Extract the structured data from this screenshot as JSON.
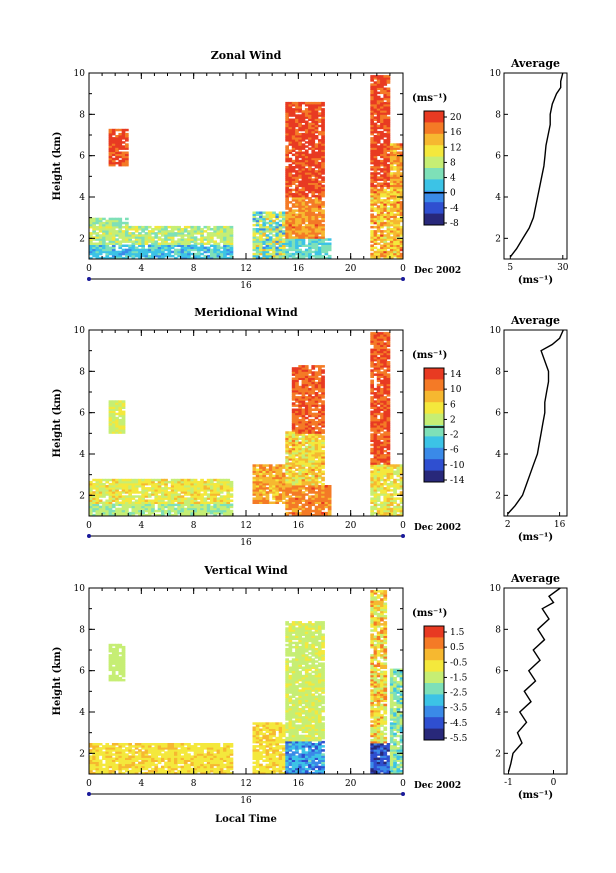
{
  "figure": {
    "date_label": "Dec 2002",
    "xlabel_bottom": "Local Time"
  },
  "chart_data": [
    {
      "type": "heatmap",
      "title": "Zonal Wind",
      "ylabel": "Height (km)",
      "ylim": [
        1,
        10
      ],
      "y_ticks": [
        "2",
        "4",
        "6",
        "8",
        "10"
      ],
      "x_ticks": [
        "0",
        "4",
        "8",
        "12",
        "16",
        "20",
        "0"
      ],
      "day_label": "16",
      "date_label": "Dec 2002",
      "colorbar": {
        "unit": "(ms⁻¹)",
        "ticks": [
          "20",
          "16",
          "12",
          "8",
          "4",
          "0",
          "-4",
          "-8"
        ],
        "zero_tick": "0"
      },
      "average": {
        "title": "Average",
        "xlabel": "(ms⁻¹)",
        "x_ticks": [
          "5",
          "30"
        ],
        "y_ticks": [
          "2",
          "4",
          "6",
          "8",
          "10"
        ],
        "xlim": [
          2,
          32
        ],
        "profile": [
          [
            1.1,
            5
          ],
          [
            1.5,
            8
          ],
          [
            2.0,
            11
          ],
          [
            2.5,
            14
          ],
          [
            3.0,
            16
          ],
          [
            3.5,
            17
          ],
          [
            4.0,
            18
          ],
          [
            4.5,
            19
          ],
          [
            5.0,
            20
          ],
          [
            5.5,
            21
          ],
          [
            6.0,
            21.5
          ],
          [
            6.5,
            22
          ],
          [
            7.0,
            23
          ],
          [
            7.5,
            24
          ],
          [
            8.0,
            24
          ],
          [
            8.5,
            25
          ],
          [
            9.0,
            27
          ],
          [
            9.3,
            29
          ],
          [
            9.6,
            29
          ],
          [
            10.0,
            30
          ]
        ]
      }
    },
    {
      "type": "heatmap",
      "title": "Meridional Wind",
      "ylabel": "Height (km)",
      "ylim": [
        1,
        10
      ],
      "y_ticks": [
        "2",
        "4",
        "6",
        "8",
        "10"
      ],
      "x_ticks": [
        "0",
        "4",
        "8",
        "12",
        "16",
        "20",
        "0"
      ],
      "day_label": "16",
      "date_label": "Dec 2002",
      "colorbar": {
        "unit": "(ms⁻¹)",
        "ticks": [
          "14",
          "10",
          "6",
          "2",
          "-2",
          "-6",
          "-10",
          "-14"
        ],
        "zero_tick": ""
      },
      "average": {
        "title": "Average",
        "xlabel": "(ms⁻¹)",
        "x_ticks": [
          "2",
          "16"
        ],
        "y_ticks": [
          "2",
          "4",
          "6",
          "8",
          "10"
        ],
        "xlim": [
          1,
          18
        ],
        "profile": [
          [
            1.1,
            2
          ],
          [
            1.5,
            4
          ],
          [
            2.0,
            6
          ],
          [
            2.5,
            7
          ],
          [
            3.0,
            8
          ],
          [
            3.5,
            9
          ],
          [
            4.0,
            10
          ],
          [
            4.5,
            10.5
          ],
          [
            5.0,
            11
          ],
          [
            5.5,
            11.5
          ],
          [
            6.0,
            12
          ],
          [
            6.5,
            12
          ],
          [
            7.0,
            12.5
          ],
          [
            7.5,
            13
          ],
          [
            8.0,
            13
          ],
          [
            8.5,
            12
          ],
          [
            9.0,
            11
          ],
          [
            9.3,
            14
          ],
          [
            9.6,
            16
          ],
          [
            10.0,
            17
          ]
        ]
      }
    },
    {
      "type": "heatmap",
      "title": "Vertical Wind",
      "ylabel": "Height (km)",
      "ylim": [
        1,
        10
      ],
      "y_ticks": [
        "2",
        "4",
        "6",
        "8",
        "10"
      ],
      "x_ticks": [
        "0",
        "4",
        "8",
        "12",
        "16",
        "20",
        "0"
      ],
      "day_label": "16",
      "date_label": "Dec 2002",
      "colorbar": {
        "unit": "(ms⁻¹)",
        "ticks": [
          "1.5",
          "0.5",
          "-0.5",
          "-1.5",
          "-2.5",
          "-3.5",
          "-4.5",
          "-5.5"
        ],
        "zero_tick": ""
      },
      "average": {
        "title": "Average",
        "xlabel": "(ms⁻¹)",
        "x_ticks": [
          "-1",
          "0"
        ],
        "y_ticks": [
          "2",
          "4",
          "6",
          "8",
          "10"
        ],
        "xlim": [
          -1.1,
          0.3
        ],
        "profile": [
          [
            1.1,
            -1.0
          ],
          [
            1.5,
            -0.95
          ],
          [
            2.0,
            -0.9
          ],
          [
            2.5,
            -0.7
          ],
          [
            3.0,
            -0.8
          ],
          [
            3.5,
            -0.6
          ],
          [
            4.0,
            -0.75
          ],
          [
            4.5,
            -0.5
          ],
          [
            5.0,
            -0.65
          ],
          [
            5.5,
            -0.4
          ],
          [
            6.0,
            -0.55
          ],
          [
            6.5,
            -0.3
          ],
          [
            7.0,
            -0.45
          ],
          [
            7.5,
            -0.2
          ],
          [
            8.0,
            -0.35
          ],
          [
            8.5,
            -0.1
          ],
          [
            9.0,
            -0.25
          ],
          [
            9.3,
            0.0
          ],
          [
            9.6,
            -0.1
          ],
          [
            10.0,
            0.15
          ]
        ]
      }
    }
  ]
}
